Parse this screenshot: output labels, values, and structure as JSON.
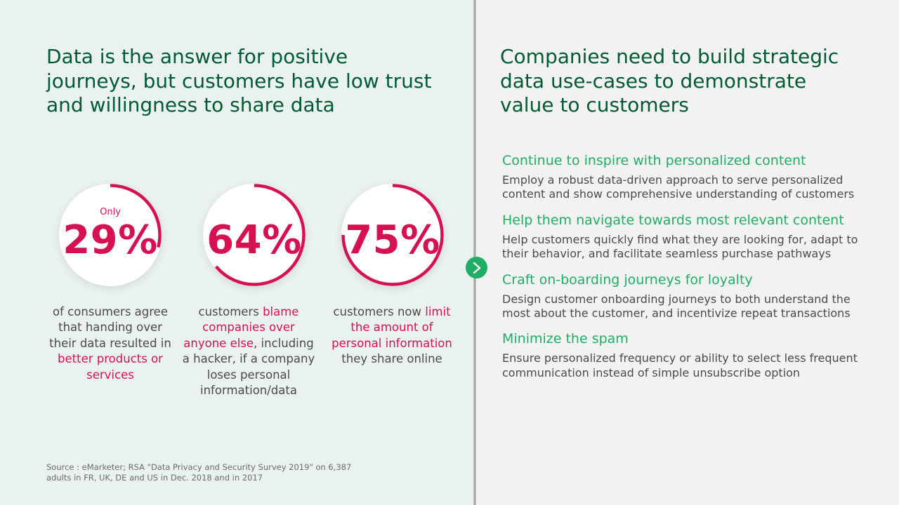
{
  "left": {
    "title": "Data is the answer for positive journeys, but customers have low trust and willingness to share data",
    "stats": [
      {
        "prefix": "Only",
        "value": "29%",
        "progress": 0.29,
        "desc_before": "of consumers agree that handing over their data resulted in ",
        "desc_highlight": "better products or services",
        "desc_after": ""
      },
      {
        "prefix": "",
        "value": "64%",
        "progress": 0.64,
        "desc_before": "customers ",
        "desc_highlight": "blame companies over anyone else,",
        "desc_after": " including a hacker, if a company loses personal information/data"
      },
      {
        "prefix": "",
        "value": "75%",
        "progress": 0.75,
        "desc_before": "customers now ",
        "desc_highlight": "limit the amount of personal information",
        "desc_after": " they share online"
      }
    ],
    "source": "Source : eMarketer; RSA \"Data Privacy and Security Survey 2019\" on 6,387 adults in FR, UK, DE and US in Dec. 2018 and in 2017"
  },
  "right": {
    "title": "Companies need to build strategic data use-cases to demonstrate value to customers",
    "items": [
      {
        "title": "Continue to inspire with personalized content",
        "body": "Employ a robust data-driven approach to serve personalized content and show comprehensive understanding of customers"
      },
      {
        "title": "Help them navigate towards most relevant content",
        "body": "Help customers quickly find what they are looking for, adapt to their behavior, and facilitate seamless purchase pathways"
      },
      {
        "title": "Craft on-boarding journeys for loyalty",
        "body": "Design customer onboarding journeys to both understand the most about the customer, and incentivize repeat transactions"
      },
      {
        "title": "Minimize the spam",
        "body": "Ensure personalized frequency or ability to select less frequent communication instead of simple unsubscribe option"
      }
    ]
  },
  "colors": {
    "title_green": "#005a32",
    "accent_green": "#1fae63",
    "accent_pink": "#d6114f",
    "text_gray": "#4a4a4a"
  },
  "icons": {
    "arrow": "chevron-right-icon"
  }
}
